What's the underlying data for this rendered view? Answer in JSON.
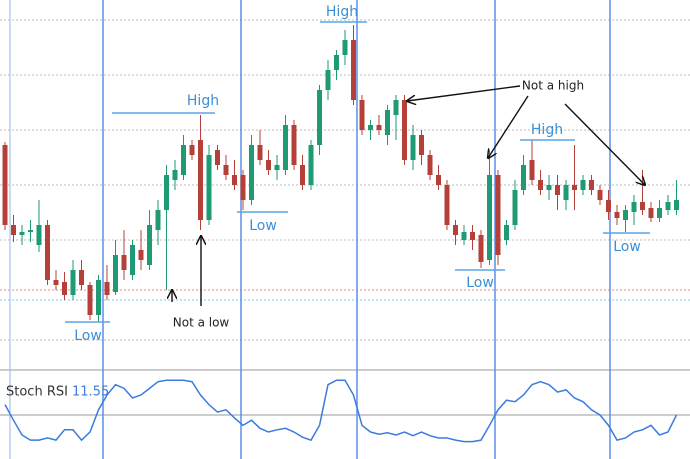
{
  "chart_data": [
    {
      "type": "candlestick",
      "open": [
        225,
        145,
        135,
        138,
        125,
        145,
        90,
        88,
        75,
        100,
        85,
        55,
        88,
        78,
        115,
        95,
        120,
        105,
        140,
        160,
        190,
        195,
        225,
        230,
        150,
        220,
        205,
        195,
        195,
        170,
        225,
        210,
        200,
        200,
        245,
        205,
        185,
        225,
        280,
        300,
        315,
        330,
        270,
        240,
        245,
        235,
        255,
        270,
        210,
        235,
        215,
        195,
        185,
        145,
        130,
        138,
        135,
        110,
        195,
        130,
        145,
        180,
        210,
        190,
        180,
        185,
        170,
        185,
        180,
        190,
        180,
        170,
        158,
        150,
        158,
        168,
        162,
        152,
        160,
        160
      ],
      "high": [
        228,
        155,
        145,
        150,
        170,
        150,
        100,
        98,
        110,
        110,
        88,
        95,
        105,
        130,
        140,
        130,
        140,
        160,
        170,
        205,
        210,
        235,
        230,
        255,
        225,
        225,
        215,
        210,
        200,
        235,
        240,
        220,
        215,
        255,
        250,
        215,
        230,
        285,
        310,
        320,
        340,
        345,
        275,
        250,
        255,
        265,
        275,
        275,
        245,
        240,
        220,
        205,
        190,
        150,
        145,
        145,
        140,
        220,
        200,
        150,
        190,
        215,
        230,
        200,
        195,
        195,
        190,
        225,
        195,
        195,
        185,
        180,
        165,
        165,
        175,
        200,
        168,
        170,
        175,
        190
      ],
      "low": [
        140,
        128,
        125,
        128,
        118,
        85,
        80,
        70,
        70,
        80,
        50,
        48,
        70,
        75,
        90,
        90,
        100,
        100,
        125,
        80,
        180,
        190,
        210,
        140,
        145,
        200,
        190,
        180,
        160,
        165,
        205,
        195,
        190,
        195,
        200,
        180,
        180,
        215,
        270,
        290,
        305,
        265,
        235,
        230,
        235,
        225,
        230,
        205,
        200,
        205,
        190,
        180,
        140,
        125,
        125,
        120,
        102,
        105,
        105,
        125,
        140,
        175,
        185,
        175,
        170,
        160,
        160,
        160,
        175,
        175,
        165,
        150,
        145,
        138,
        145,
        155,
        148,
        148,
        155,
        155
      ],
      "close": [
        145,
        135,
        138,
        140,
        145,
        90,
        85,
        75,
        100,
        85,
        55,
        90,
        75,
        115,
        100,
        125,
        110,
        145,
        160,
        195,
        200,
        225,
        215,
        150,
        215,
        205,
        195,
        185,
        170,
        225,
        210,
        200,
        205,
        245,
        205,
        185,
        225,
        280,
        300,
        315,
        330,
        270,
        240,
        245,
        240,
        260,
        270,
        210,
        235,
        215,
        195,
        185,
        145,
        135,
        138,
        130,
        108,
        195,
        115,
        145,
        180,
        205,
        190,
        180,
        185,
        175,
        185,
        180,
        190,
        180,
        170,
        158,
        152,
        160,
        168,
        160,
        152,
        162,
        168,
        170
      ],
      "ylim": [
        0,
        370
      ],
      "up_color": "#1e9a74",
      "down_color": "#b5403a",
      "annotations": [
        "High",
        "High",
        "High",
        "Low",
        "Low",
        "Low",
        "Low",
        "Not a low",
        "Not a high"
      ]
    },
    {
      "type": "line",
      "title": "Stoch RSI",
      "current_value": 11.55,
      "ylim": [
        0,
        100
      ],
      "series": [
        {
          "name": "Stoch RSI",
          "color": "#3b7be0",
          "values": [
            64,
            43,
            23,
            16,
            16,
            19,
            16,
            30,
            30,
            16,
            27,
            57,
            77,
            91,
            86,
            73,
            77,
            86,
            95,
            97,
            97,
            97,
            95,
            77,
            64,
            54,
            57,
            46,
            36,
            43,
            32,
            27,
            30,
            32,
            27,
            20,
            16,
            36,
            91,
            97,
            97,
            77,
            36,
            27,
            24,
            26,
            23,
            27,
            22,
            27,
            22,
            19,
            19,
            16,
            14,
            14,
            16,
            36,
            57,
            70,
            68,
            77,
            91,
            95,
            91,
            81,
            84,
            73,
            68,
            57,
            50,
            36,
            16,
            19,
            27,
            30,
            36,
            23,
            27,
            50
          ]
        }
      ]
    }
  ]
}
